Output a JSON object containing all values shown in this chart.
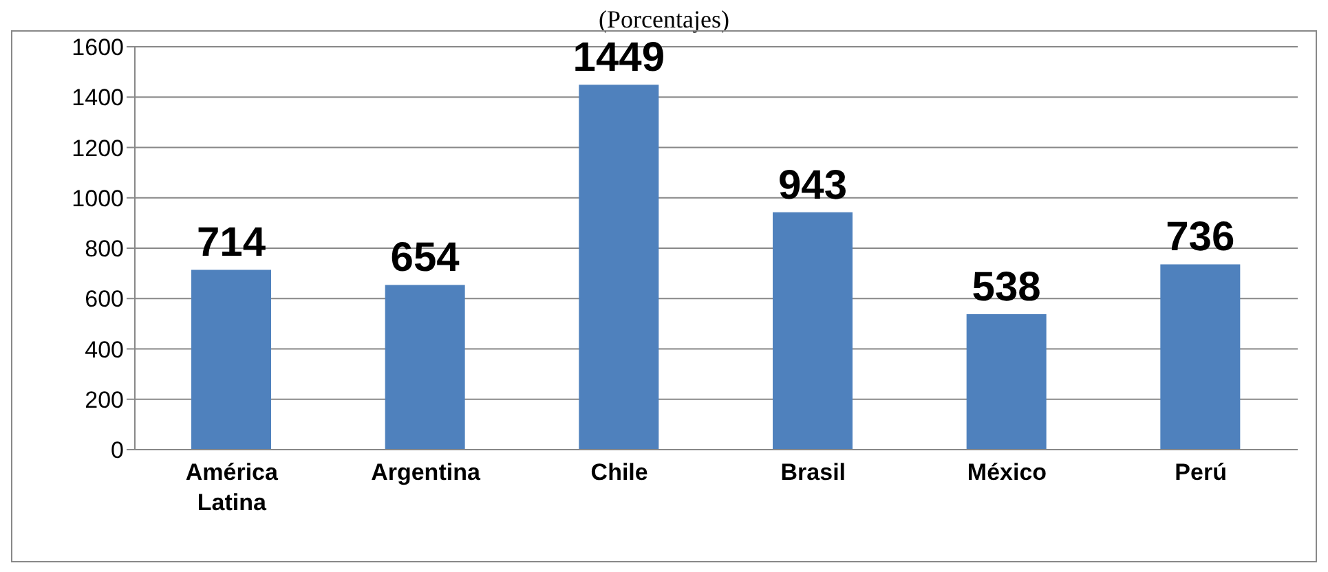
{
  "chart_data": {
    "type": "bar",
    "title": "(Porcentajes)",
    "categories": [
      "América Latina",
      "Argentina",
      "Chile",
      "Brasil",
      "México",
      "Perú"
    ],
    "values": [
      714,
      654,
      1449,
      943,
      538,
      736
    ],
    "color": "#4f81bd",
    "ylim": [
      0,
      1600
    ],
    "yticks": [
      0,
      200,
      400,
      600,
      800,
      1000,
      1200,
      1400,
      1600
    ],
    "grid": "y",
    "data_labels": true
  }
}
